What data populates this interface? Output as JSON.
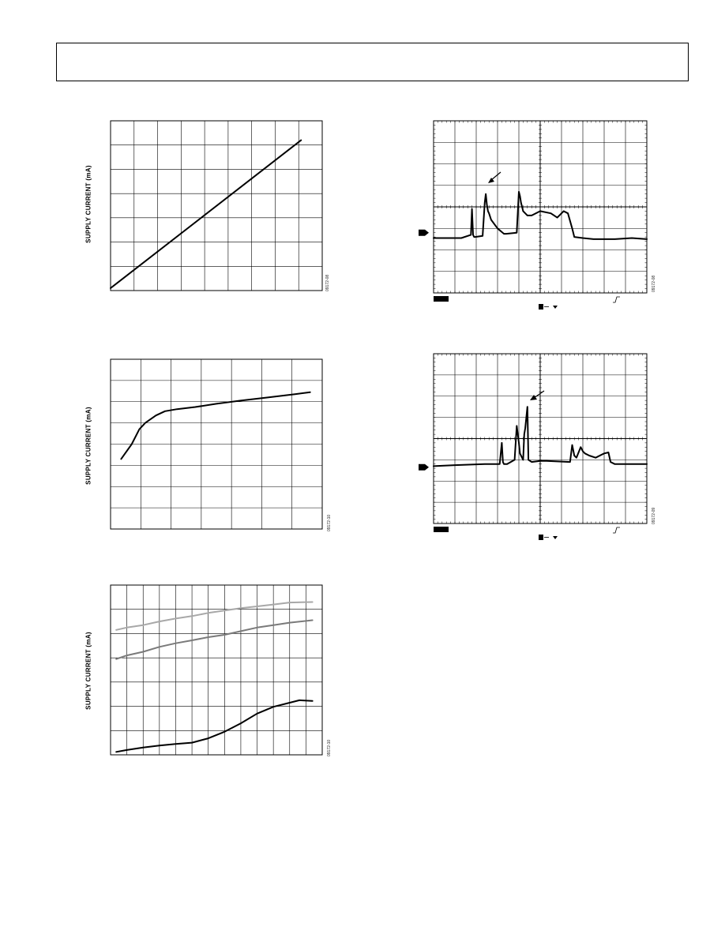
{
  "header": {
    "title": ""
  },
  "colors": {
    "trace": "#000000",
    "gray_light": "#a8a8a8",
    "gray_mid": "#7a7a7a",
    "grid": "#000000"
  },
  "chart_data": [
    {
      "id": "chart1",
      "type": "line",
      "ylabel": "SUPPLY CURRENT (mA)",
      "figure_id": "09172-08",
      "x_divisions": 9,
      "y_divisions": 7,
      "xlim": [
        0,
        9
      ],
      "ylim": [
        0,
        7
      ],
      "series": [
        {
          "color": "trace",
          "x": [
            0,
            8.1
          ],
          "y": [
            0.1,
            6.2
          ]
        }
      ]
    },
    {
      "id": "chart2",
      "type": "line",
      "ylabel": "SUPPLY CURRENT (mA)",
      "figure_id": "09172-10",
      "x_divisions": 7,
      "y_divisions": 8,
      "xlim": [
        0,
        7
      ],
      "ylim": [
        0,
        8
      ],
      "series": [
        {
          "color": "trace",
          "x": [
            0.35,
            0.7,
            0.95,
            1.15,
            1.5,
            1.8,
            2.2,
            2.8,
            3.5,
            4.3,
            5.2,
            6.1,
            6.6
          ],
          "y": [
            3.3,
            4.0,
            4.7,
            5.0,
            5.35,
            5.55,
            5.65,
            5.75,
            5.9,
            6.05,
            6.2,
            6.35,
            6.45
          ]
        }
      ]
    },
    {
      "id": "chart3",
      "type": "line",
      "ylabel": "SUPPLY CURRENT (mA)",
      "figure_id": "09172-10",
      "x_divisions": 13,
      "y_divisions": 7,
      "xlim": [
        0,
        13
      ],
      "ylim": [
        0,
        7
      ],
      "series": [
        {
          "color": "gray_light",
          "x": [
            0.35,
            1,
            2,
            3,
            4,
            5,
            6,
            7,
            8,
            9,
            10,
            11,
            12.4
          ],
          "y": [
            5.15,
            5.25,
            5.35,
            5.5,
            5.62,
            5.72,
            5.85,
            5.95,
            6.05,
            6.12,
            6.2,
            6.28,
            6.3
          ]
        },
        {
          "color": "gray_mid",
          "x": [
            0.35,
            1,
            2,
            3,
            4,
            5,
            6,
            7,
            8,
            9,
            10,
            11,
            12.4
          ],
          "y": [
            3.95,
            4.1,
            4.25,
            4.45,
            4.6,
            4.72,
            4.85,
            4.95,
            5.1,
            5.25,
            5.35,
            5.45,
            5.55
          ]
        },
        {
          "color": "trace",
          "x": [
            0.35,
            1,
            2,
            3,
            4,
            5,
            6,
            7,
            8,
            9,
            10,
            11,
            11.6,
            12.4
          ],
          "y": [
            0.12,
            0.2,
            0.3,
            0.38,
            0.45,
            0.5,
            0.68,
            0.95,
            1.3,
            1.7,
            1.98,
            2.15,
            2.25,
            2.22
          ]
        }
      ]
    },
    {
      "id": "scope1",
      "type": "line",
      "figure_id": "09172-08",
      "x_divisions": 10,
      "y_divisions": 8,
      "xlim": [
        0,
        10
      ],
      "ylim": [
        0,
        8
      ],
      "ground_ref_y": 2.8,
      "series": [
        {
          "color": "trace",
          "x": [
            0,
            1.3,
            1.75,
            1.8,
            1.85,
            1.9,
            1.95,
            2.3,
            2.4,
            2.45,
            2.5,
            2.55,
            2.6,
            2.7,
            3.0,
            3.3,
            3.4,
            3.9,
            4.0,
            4.05,
            4.1,
            4.2,
            4.4,
            4.6,
            5.0,
            5.5,
            5.8,
            6.1,
            6.3,
            6.5,
            6.6,
            7.0,
            7.5,
            8.5,
            9.3,
            10
          ],
          "y": [
            2.55,
            2.55,
            2.7,
            3.9,
            2.7,
            2.6,
            2.6,
            2.65,
            4.2,
            4.6,
            4.1,
            3.8,
            3.7,
            3.4,
            3.0,
            2.75,
            2.75,
            2.8,
            4.7,
            4.5,
            4.2,
            3.8,
            3.6,
            3.6,
            3.8,
            3.7,
            3.5,
            3.8,
            3.7,
            3.0,
            2.6,
            2.55,
            2.5,
            2.5,
            2.55,
            2.5
          ]
        }
      ]
    },
    {
      "id": "scope2",
      "type": "line",
      "figure_id": "09172-09",
      "x_divisions": 10,
      "y_divisions": 8,
      "xlim": [
        0,
        10
      ],
      "ylim": [
        0,
        8
      ],
      "ground_ref_y": 2.65,
      "series": [
        {
          "color": "trace",
          "x": [
            0,
            1.0,
            2.4,
            3.1,
            3.2,
            3.25,
            3.3,
            3.45,
            3.8,
            3.9,
            4.0,
            4.05,
            4.2,
            4.25,
            4.3,
            4.4,
            4.45,
            4.6,
            5.0,
            5.3,
            6.4,
            6.5,
            6.6,
            6.7,
            6.9,
            7.0,
            7.1,
            7.3,
            7.6,
            8.0,
            8.2,
            8.3,
            8.5,
            9.3,
            10
          ],
          "y": [
            2.7,
            2.75,
            2.8,
            2.8,
            3.8,
            2.9,
            2.8,
            2.8,
            3.0,
            4.6,
            3.8,
            3.3,
            3.0,
            4.2,
            4.5,
            5.5,
            3.0,
            2.9,
            2.95,
            2.95,
            2.9,
            3.7,
            3.2,
            3.1,
            3.6,
            3.4,
            3.3,
            3.2,
            3.1,
            3.3,
            3.35,
            2.9,
            2.8,
            2.8,
            2.8
          ]
        }
      ]
    }
  ]
}
